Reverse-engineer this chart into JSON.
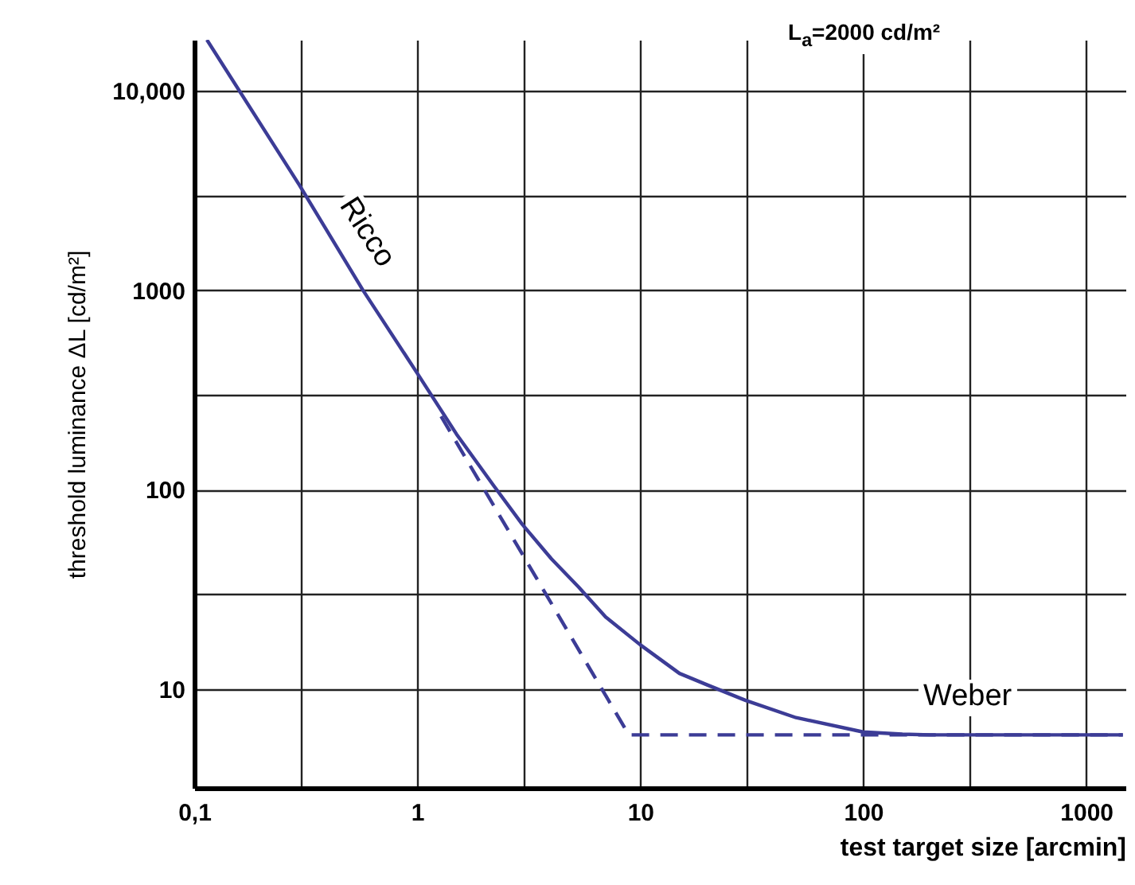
{
  "chart_data": {
    "type": "line",
    "xlabel": "test target size [arcmin]",
    "ylabel": "threshold luminance ΔL [cd/m²]",
    "log": "xy",
    "grid": true,
    "xlim": [
      0.1,
      1500
    ],
    "xticks": [
      {
        "value": 0.1,
        "label": "0,1"
      },
      {
        "value": 0.3,
        "label": null
      },
      1,
      {
        "value": 3,
        "label": null
      },
      10,
      {
        "value": 30,
        "label": null
      },
      100,
      {
        "value": 300,
        "label": null
      },
      1000
    ],
    "ylim": [
      3.2,
      18000
    ],
    "yticks": [
      10,
      {
        "value": 30,
        "label": null
      },
      100,
      {
        "value": 300,
        "label": null
      },
      1000,
      {
        "value": 3000,
        "label": null
      },
      {
        "value": 10000,
        "label": "10,000"
      }
    ],
    "series": [
      {
        "color": "#3c3c96",
        "line_style": "solid",
        "x": [
          0.114,
          0.296,
          0.571,
          1,
          1.5,
          2.2,
          2.96,
          4,
          5.3,
          7,
          10,
          15,
          20,
          29.6,
          50,
          100,
          150,
          200,
          1460
        ],
        "values": [
          18000,
          3370,
          1000,
          384,
          190,
          105,
          67,
          45,
          32.5,
          23,
          16.7,
          12,
          10.5,
          8.8,
          7.2,
          6.1,
          5.95,
          5.9,
          5.9
        ]
      },
      {
        "color": "#3c3c96",
        "line_style": "dashed",
        "x": [
          1.28,
          8.9,
          1460
        ],
        "values": [
          233,
          5.9,
          5.9
        ]
      }
    ],
    "annotations": [
      "L$_{a}$=2000 cd/m²",
      "Ricco",
      "Weber"
    ]
  }
}
